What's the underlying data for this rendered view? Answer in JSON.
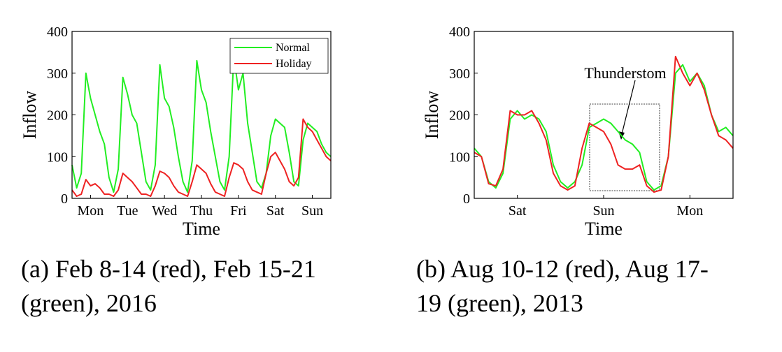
{
  "chart_data": [
    {
      "type": "line",
      "ylabel": "Inflow",
      "xlabel": "Time",
      "caption": [
        "(a) Feb 8-14 (red), Feb 15-21",
        "(green), 2016"
      ],
      "xlim": [
        0,
        168
      ],
      "xticks": [
        {
          "value": 12,
          "label": "Mon"
        },
        {
          "value": 36,
          "label": "Tue"
        },
        {
          "value": 60,
          "label": "Wed"
        },
        {
          "value": 84,
          "label": "Thu"
        },
        {
          "value": 108,
          "label": "Fri"
        },
        {
          "value": 132,
          "label": "Sat"
        },
        {
          "value": 156,
          "label": "Sun"
        }
      ],
      "ylim": [
        0,
        400
      ],
      "yticks": [
        0,
        100,
        200,
        300,
        400
      ],
      "legend": "upper right",
      "x": [
        0,
        3,
        6,
        9,
        12,
        15,
        18,
        21,
        24,
        27,
        30,
        33,
        36,
        39,
        42,
        45,
        48,
        51,
        54,
        57,
        60,
        63,
        66,
        69,
        72,
        75,
        78,
        81,
        84,
        87,
        90,
        93,
        96,
        99,
        102,
        105,
        108,
        111,
        114,
        117,
        120,
        123,
        126,
        129,
        132,
        135,
        138,
        141,
        144,
        147,
        150,
        153,
        156,
        159,
        162,
        165,
        168
      ],
      "series": [
        {
          "name": "Normal",
          "color": "#22ee22",
          "values": [
            80,
            25,
            60,
            300,
            240,
            200,
            160,
            130,
            50,
            15,
            70,
            290,
            250,
            200,
            180,
            110,
            40,
            20,
            80,
            320,
            240,
            220,
            170,
            100,
            40,
            15,
            90,
            330,
            260,
            230,
            160,
            100,
            40,
            20,
            100,
            340,
            260,
            300,
            180,
            110,
            40,
            25,
            60,
            150,
            190,
            180,
            170,
            110,
            40,
            30,
            140,
            180,
            170,
            160,
            130,
            110,
            100
          ]
        },
        {
          "name": "Holiday",
          "color": "#ee2222",
          "values": [
            20,
            5,
            10,
            45,
            30,
            35,
            25,
            10,
            10,
            5,
            20,
            60,
            50,
            40,
            25,
            10,
            10,
            5,
            30,
            65,
            60,
            50,
            30,
            15,
            10,
            5,
            40,
            80,
            70,
            60,
            35,
            15,
            10,
            5,
            50,
            85,
            80,
            70,
            40,
            20,
            15,
            10,
            60,
            100,
            110,
            90,
            70,
            40,
            30,
            50,
            190,
            170,
            160,
            140,
            120,
            100,
            90
          ]
        }
      ]
    },
    {
      "type": "line",
      "ylabel": "Inflow",
      "xlabel": "Time",
      "caption": [
        "(b) Aug 10-12 (red), Aug 17-",
        "19 (green), 2013"
      ],
      "annotation": "Thunderstom",
      "xlim": [
        0,
        72
      ],
      "xticks": [
        {
          "value": 12,
          "label": "Sat"
        },
        {
          "value": 36,
          "label": "Sun"
        },
        {
          "value": 60,
          "label": "Mon"
        }
      ],
      "ylim": [
        0,
        400
      ],
      "yticks": [
        0,
        100,
        200,
        300,
        400
      ],
      "x": [
        0,
        2,
        4,
        6,
        8,
        10,
        12,
        14,
        16,
        18,
        20,
        22,
        24,
        26,
        28,
        30,
        32,
        34,
        36,
        38,
        40,
        42,
        44,
        46,
        48,
        50,
        52,
        54,
        56,
        58,
        60,
        62,
        64,
        66,
        68,
        70,
        72
      ],
      "series": [
        {
          "name": "Aug 17-19",
          "color": "#22ee22",
          "values": [
            120,
            100,
            40,
            25,
            60,
            190,
            210,
            190,
            200,
            190,
            160,
            80,
            40,
            25,
            40,
            80,
            170,
            180,
            190,
            180,
            160,
            140,
            130,
            110,
            40,
            20,
            30,
            100,
            300,
            320,
            280,
            300,
            270,
            200,
            160,
            170,
            150
          ]
        },
        {
          "name": "Aug 10-12",
          "color": "#ee2222",
          "values": [
            110,
            100,
            35,
            30,
            70,
            210,
            200,
            200,
            210,
            180,
            140,
            60,
            30,
            20,
            30,
            120,
            180,
            170,
            160,
            130,
            80,
            70,
            70,
            80,
            30,
            15,
            20,
            100,
            340,
            300,
            270,
            300,
            260,
            200,
            150,
            140,
            120
          ]
        }
      ]
    }
  ]
}
